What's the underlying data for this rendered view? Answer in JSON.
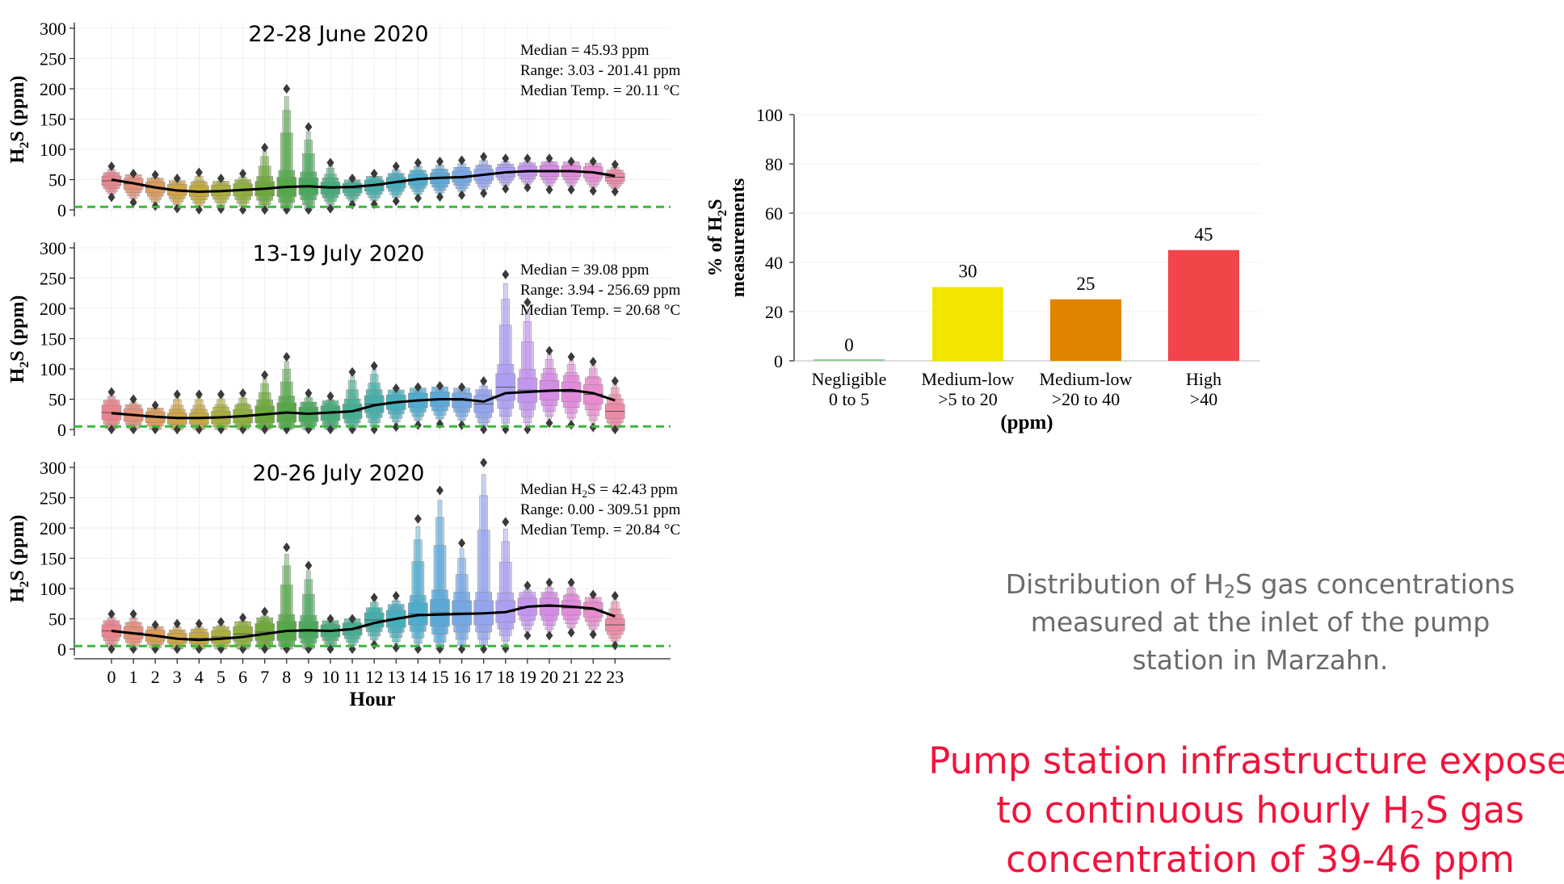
{
  "chart_data": [
    {
      "type": "boxen",
      "title": "22-28 June 2020",
      "xlabel": "",
      "ylabel_main": "H",
      "ylabel_sub": "2",
      "ylabel_rest": "S (ppm)",
      "ylim": [
        0,
        320
      ],
      "yticks": [
        "0",
        "50",
        "100",
        "150",
        "200",
        "250",
        "300"
      ],
      "threshold": 5,
      "threshold_color": "#3cb83c",
      "stats": [
        "Median = 45.93 ppm",
        "Range: 3.03 - 201.41 ppm",
        "Median Temp. = 20.11 °C"
      ],
      "medians": [
        48,
        43,
        37,
        33,
        31,
        32,
        33,
        35,
        38,
        39,
        36,
        36,
        40,
        45,
        50,
        52,
        55,
        58,
        62,
        64,
        64,
        64,
        62,
        54
      ],
      "spread": [
        8,
        9,
        9,
        9,
        9,
        9,
        10,
        12,
        16,
        14,
        10,
        8,
        9,
        9,
        9,
        9,
        9,
        9,
        8,
        8,
        9,
        9,
        9,
        7
      ],
      "maxes": [
        72,
        60,
        58,
        52,
        62,
        52,
        60,
        103,
        200,
        137,
        78,
        52,
        60,
        72,
        78,
        80,
        82,
        88,
        85,
        85,
        85,
        80,
        80,
        75
      ],
      "trend": [
        50,
        44,
        37,
        32,
        30,
        31,
        33,
        35,
        38,
        39,
        37,
        38,
        41,
        46,
        51,
        53,
        54,
        58,
        62,
        64,
        64,
        64,
        62,
        56
      ]
    },
    {
      "type": "boxen",
      "title": "13-19 July 2020",
      "xlabel": "",
      "ylabel_main": "H",
      "ylabel_sub": "2",
      "ylabel_rest": "S (ppm)",
      "ylim": [
        0,
        320
      ],
      "yticks": [
        "0",
        "50",
        "100",
        "150",
        "200",
        "250",
        "300"
      ],
      "threshold": 5,
      "threshold_color": "#3cb83c",
      "stats": [
        "Median = 39.08 ppm",
        "Range: 3.94 - 256.69 ppm",
        "Median Temp. = 20.68 °C"
      ],
      "medians": [
        28,
        24,
        20,
        18,
        18,
        20,
        22,
        25,
        28,
        25,
        27,
        30,
        42,
        45,
        48,
        50,
        48,
        42,
        70,
        65,
        65,
        62,
        58,
        30
      ],
      "spread": [
        12,
        10,
        9,
        9,
        9,
        10,
        11,
        14,
        16,
        12,
        12,
        12,
        14,
        12,
        12,
        12,
        12,
        14,
        22,
        20,
        16,
        16,
        16,
        12
      ],
      "maxes": [
        62,
        50,
        40,
        58,
        58,
        58,
        60,
        90,
        120,
        60,
        55,
        95,
        105,
        68,
        70,
        72,
        70,
        80,
        256,
        210,
        130,
        120,
        112,
        80
      ],
      "trend": [
        27,
        24,
        21,
        19,
        19,
        20,
        22,
        25,
        28,
        26,
        28,
        30,
        40,
        45,
        48,
        50,
        50,
        46,
        60,
        62,
        64,
        65,
        60,
        48
      ]
    },
    {
      "type": "boxen",
      "title": "20-26 July 2020",
      "xlabel": "Hour",
      "ylabel_main": "H",
      "ylabel_sub": "2",
      "ylabel_rest": "S (ppm)",
      "ylim": [
        0,
        320
      ],
      "yticks": [
        "0",
        "50",
        "100",
        "150",
        "200",
        "250",
        "300"
      ],
      "threshold": 5,
      "threshold_color": "#3cb83c",
      "stats_prefix": "Median H",
      "stats_sub": "2",
      "stats_suffix": "S = 42.43 ppm",
      "stats": [
        "Range: 0.00 - 309.51 ppm",
        "Median Temp. = 20.84 °C"
      ],
      "medians": [
        30,
        27,
        22,
        18,
        18,
        20,
        25,
        28,
        30,
        32,
        30,
        33,
        48,
        50,
        58,
        60,
        60,
        60,
        62,
        70,
        70,
        68,
        65,
        40
      ],
      "spread": [
        10,
        10,
        9,
        8,
        9,
        10,
        12,
        14,
        16,
        14,
        10,
        10,
        12,
        14,
        18,
        22,
        20,
        20,
        18,
        14,
        14,
        12,
        12,
        10
      ],
      "maxes": [
        58,
        58,
        40,
        42,
        42,
        45,
        52,
        62,
        168,
        138,
        50,
        50,
        85,
        88,
        215,
        262,
        175,
        308,
        210,
        105,
        110,
        110,
        90,
        88
      ],
      "trend": [
        30,
        26,
        22,
        17,
        15,
        17,
        20,
        25,
        30,
        31,
        30,
        33,
        43,
        50,
        56,
        57,
        58,
        59,
        61,
        70,
        72,
        70,
        67,
        54
      ],
      "xticks": [
        "0",
        "1",
        "2",
        "3",
        "4",
        "5",
        "6",
        "7",
        "8",
        "9",
        "10",
        "11",
        "12",
        "13",
        "14",
        "15",
        "16",
        "17",
        "18",
        "19",
        "20",
        "21",
        "22",
        "23"
      ]
    },
    {
      "type": "bar",
      "ylabel_line1_pre": "% of H",
      "ylabel_line1_sub": "2",
      "ylabel_line1_post": "S",
      "ylabel_line2": "measurements",
      "xlabel": "(ppm)",
      "ylim": [
        0,
        100
      ],
      "yticks": [
        "0",
        "20",
        "40",
        "60",
        "80",
        "100"
      ],
      "categories": [
        {
          "line1": "Negligible",
          "line2": "0 to 5"
        },
        {
          "line1": "Medium-low",
          "line2": ">5 to 20"
        },
        {
          "line1": "Medium-low",
          "line2": ">20 to 40"
        },
        {
          "line1": "High",
          "line2": ">40"
        }
      ],
      "values": [
        0,
        30,
        25,
        45
      ],
      "value_labels": [
        "0",
        "30",
        "25",
        "45"
      ],
      "colors": [
        "#8fd18f",
        "#f2e600",
        "#e28300",
        "#f2454a"
      ]
    }
  ],
  "palette": [
    "#e8848c",
    "#e2907a",
    "#d99a5c",
    "#cfa347",
    "#c2a83e",
    "#a9ad3e",
    "#8fae3d",
    "#6ea83a",
    "#55a84a",
    "#4aa85c",
    "#45ab78",
    "#45ad93",
    "#45adaa",
    "#47aebd",
    "#4eaccd",
    "#5ba8d8",
    "#75a6e3",
    "#93a3ec",
    "#ae9ef0",
    "#c396ed",
    "#d48ce4",
    "#e08adb",
    "#e88ccc",
    "#ec8aa5"
  ],
  "caption": {
    "line1_pre": "Distribution of H",
    "line1_sub": "2",
    "line1_post": "S gas concentrations",
    "line2": "measured at the inlet of the pump",
    "line3": "station in Marzahn."
  },
  "headline": {
    "line1": "Pump station infrastructure exposed",
    "line2_pre": "to continuous hourly H",
    "line2_sub": "2",
    "line2_post": "S gas",
    "line3": "concentration of 39-46 ppm"
  }
}
